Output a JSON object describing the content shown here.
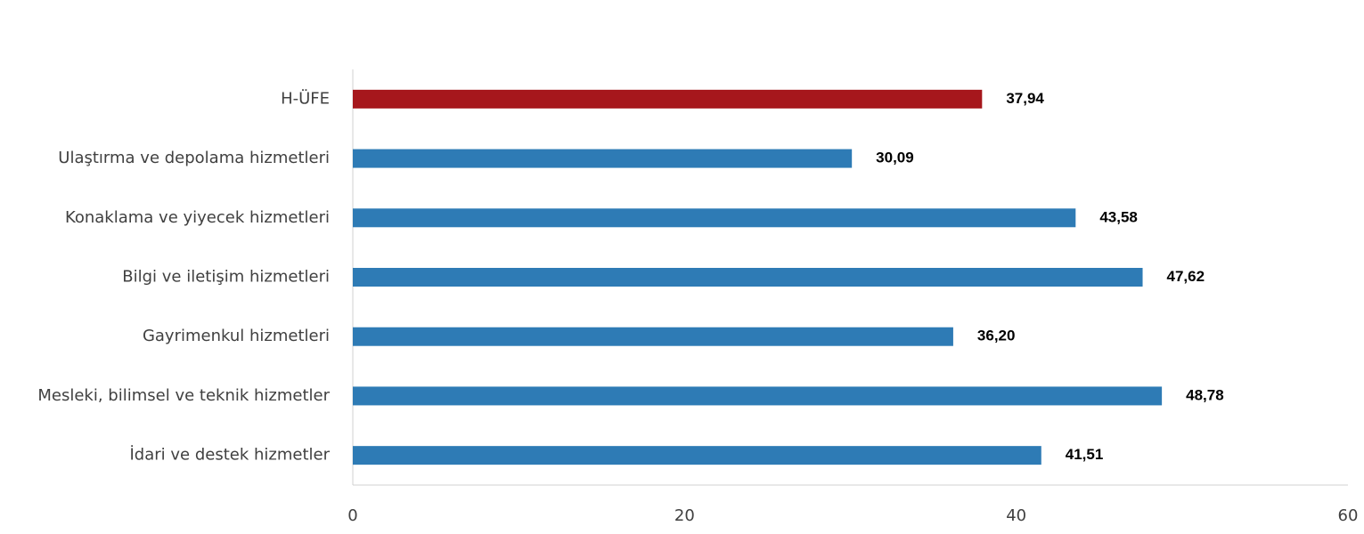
{
  "chart_data": {
    "type": "barh",
    "categories": [
      "H-ÜFE",
      "Ulaştırma ve depolama hizmetleri",
      "Konaklama ve yiyecek hizmetleri",
      "Bilgi ve iletişim hizmetleri",
      "Gayrimenkul hizmetleri",
      "Mesleki, bilimsel ve teknik hizmetler",
      "İdari ve destek hizmetler"
    ],
    "values": [
      37.94,
      30.09,
      43.58,
      47.62,
      36.2,
      48.78,
      41.51
    ],
    "value_labels": [
      "37,94",
      "30,09",
      "43,58",
      "47,62",
      "36,20",
      "48,78",
      "41,51"
    ],
    "colors": [
      "#a6171c",
      "#2e7bb5",
      "#2e7bb5",
      "#2e7bb5",
      "#2e7bb5",
      "#2e7bb5",
      "#2e7bb5"
    ],
    "xlim": [
      0,
      60
    ],
    "xticks": [
      0,
      20,
      40,
      60
    ],
    "grid": false
  }
}
